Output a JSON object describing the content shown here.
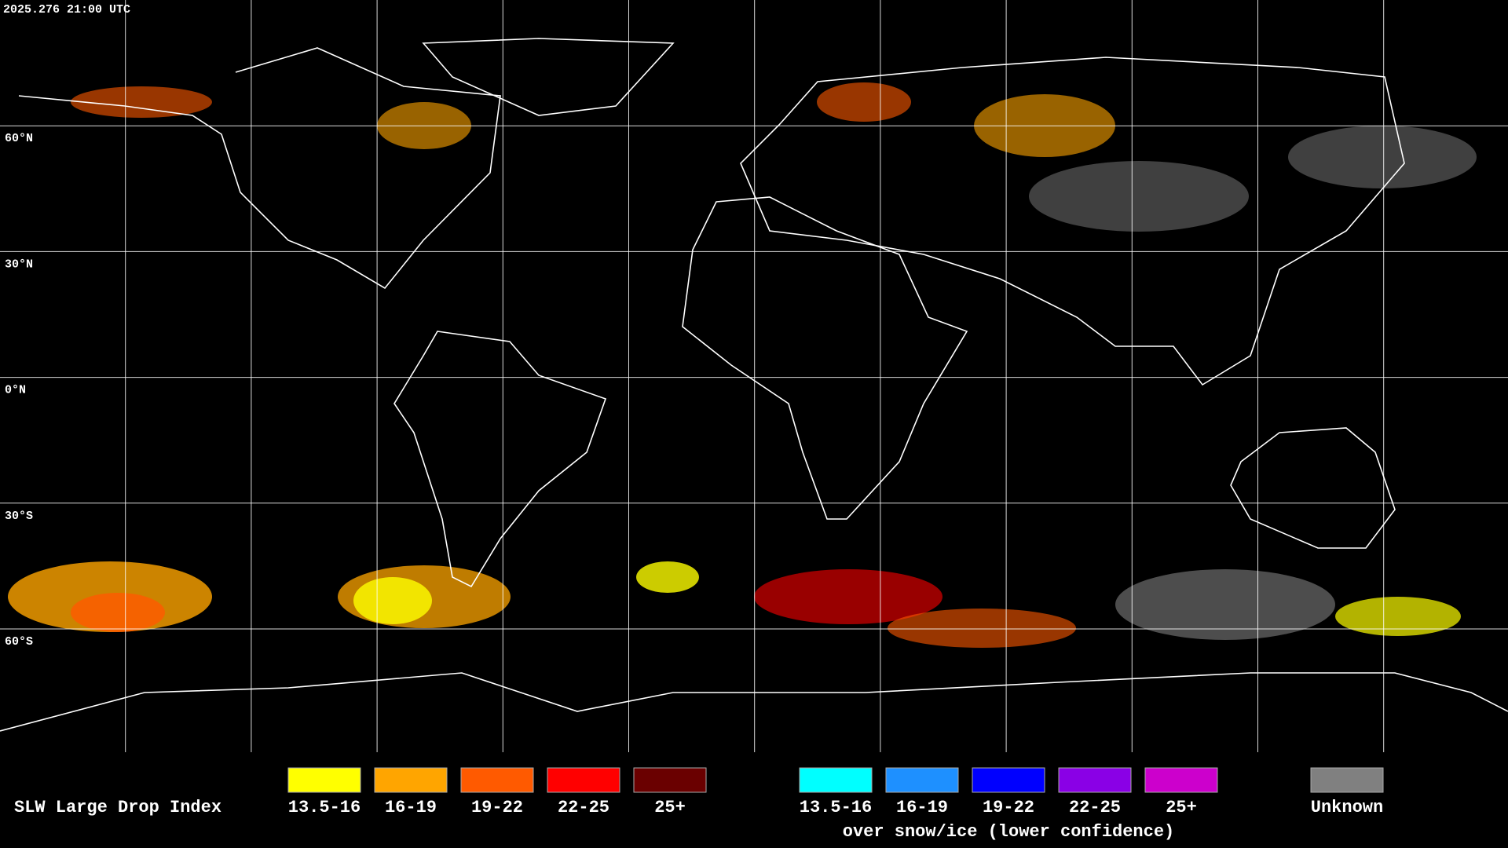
{
  "header": {
    "timestamp": "2025.276 21:00 UTC"
  },
  "latitude_labels": [
    "60°N",
    "30°N",
    "0°N",
    "30°S",
    "60°S"
  ],
  "legend": {
    "title": "SLW Large Drop Index",
    "items": [
      {
        "label": "13.5-16",
        "color": "#ffff00"
      },
      {
        "label": "16-19",
        "color": "#ffa500"
      },
      {
        "label": "19-22",
        "color": "#ff5a00"
      },
      {
        "label": "22-25",
        "color": "#ff0000"
      },
      {
        "label": "25+",
        "color": "#6a0000"
      }
    ],
    "snow_ice": {
      "items": [
        {
          "label": "13.5-16",
          "color": "#00ffff"
        },
        {
          "label": "16-19",
          "color": "#1e90ff"
        },
        {
          "label": "19-22",
          "color": "#0000ff"
        },
        {
          "label": "22-25",
          "color": "#8a00e6"
        },
        {
          "label": "25+",
          "color": "#cc00cc"
        }
      ],
      "caption": "over snow/ice (lower confidence)"
    },
    "unknown": {
      "label": "Unknown",
      "color": "#808080"
    }
  }
}
